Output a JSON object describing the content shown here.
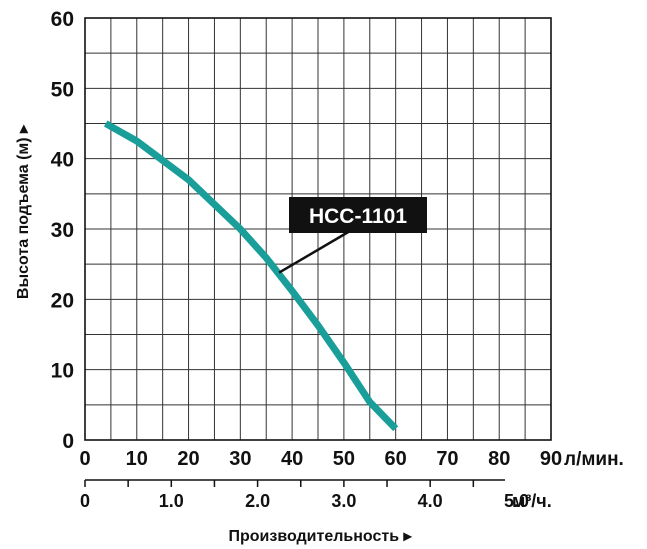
{
  "chart_data": {
    "type": "line",
    "ylabel": "Высота подъема (м) ▸",
    "xlabel": "Производительность ▸",
    "x_unit_primary": "л/мин.",
    "x_unit_secondary": "м³/ч.",
    "xlim": [
      0,
      90
    ],
    "ylim": [
      0,
      60
    ],
    "grid": true,
    "y_ticks": [
      "0",
      "10",
      "20",
      "30",
      "40",
      "50",
      "60"
    ],
    "x_ticks_primary": [
      "0",
      "10",
      "20",
      "30",
      "40",
      "50",
      "60",
      "70",
      "80",
      "90"
    ],
    "x_ticks_secondary": [
      "0",
      "1.0",
      "2.0",
      "3.0",
      "4.0",
      "5.0"
    ],
    "series": [
      {
        "name": "HCC-1101",
        "color": "#1a9e9a",
        "x": [
          4,
          10,
          20,
          30,
          35,
          40,
          45,
          50,
          55,
          60
        ],
        "y": [
          45,
          42.5,
          37,
          30,
          25.9,
          21.2,
          16.3,
          11,
          5.4,
          1.6
        ]
      }
    ]
  }
}
